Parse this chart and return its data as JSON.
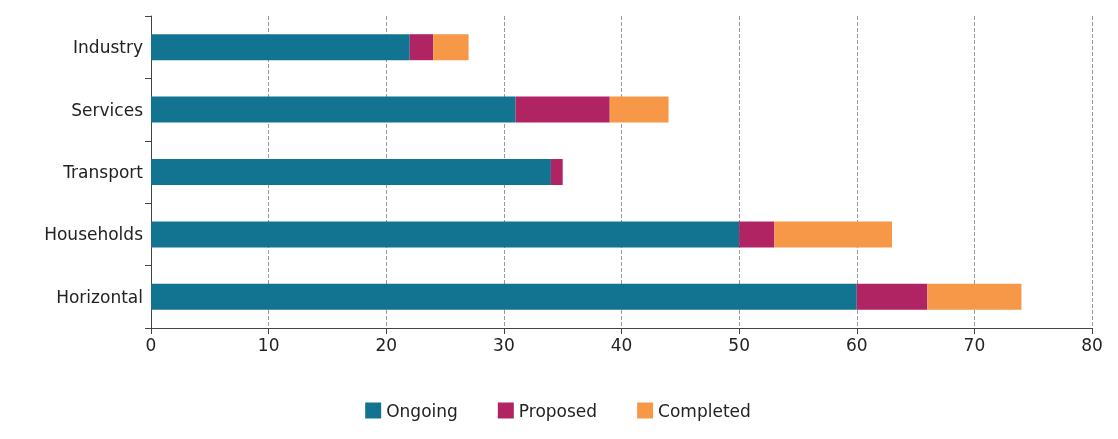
{
  "chart_data": {
    "type": "bar",
    "orientation": "horizontal",
    "stacked": true,
    "categories": [
      "Industry",
      "Services",
      "Transport",
      "Households",
      "Horizontal"
    ],
    "series": [
      {
        "name": "Ongoing",
        "color": "#127491",
        "values": [
          22,
          31,
          34,
          50,
          60
        ]
      },
      {
        "name": "Proposed",
        "color": "#b12464",
        "values": [
          2,
          8,
          1,
          3,
          6
        ]
      },
      {
        "name": "Completed",
        "color": "#f79849",
        "values": [
          3,
          5,
          0,
          10,
          8
        ]
      }
    ],
    "xlim": [
      0,
      80
    ],
    "xticks": [
      0,
      10,
      20,
      30,
      40,
      50,
      60,
      70,
      80
    ],
    "grid": "x",
    "legend": "bottom"
  }
}
